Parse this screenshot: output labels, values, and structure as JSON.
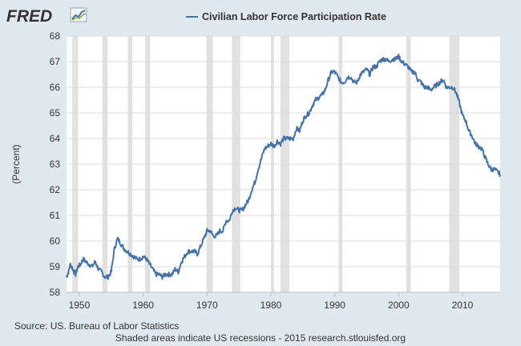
{
  "brand": {
    "name": "FRED"
  },
  "source": "Source: US. Bureau of Labor Statistics",
  "footer": "Shaded areas indicate US recessions - 2015 research.stlouisfed.org",
  "colors": {
    "background": "#e1e9f0",
    "plot_background": "#ffffff",
    "series": "#4572a7",
    "recession": "#e1e1e1",
    "grid": "#dddddd"
  },
  "chart_data": {
    "type": "line",
    "title": "",
    "xlabel": "",
    "ylabel": "(Percent)",
    "xlim": [
      1948,
      2015.9
    ],
    "ylim": [
      58,
      68
    ],
    "xticks": [
      1950,
      1960,
      1970,
      1980,
      1990,
      2000,
      2010
    ],
    "yticks": [
      58,
      59,
      60,
      61,
      62,
      63,
      64,
      65,
      66,
      67,
      68
    ],
    "grid": "horizontal",
    "legend": "top-center",
    "recessions": [
      [
        1948.9,
        1949.8
      ],
      [
        1953.6,
        1954.4
      ],
      [
        1957.6,
        1958.3
      ],
      [
        1960.3,
        1961.1
      ],
      [
        1969.9,
        1970.9
      ],
      [
        1973.9,
        1975.2
      ],
      [
        1980.0,
        1980.5
      ],
      [
        1981.5,
        1982.9
      ],
      [
        1990.6,
        1991.2
      ],
      [
        2001.2,
        2001.9
      ],
      [
        2007.9,
        2009.5
      ]
    ],
    "series": [
      {
        "name": "Civilian Labor Force Participation Rate",
        "x": [
          1948.0,
          1948.3,
          1948.6,
          1949.0,
          1949.4,
          1949.8,
          1950.2,
          1950.6,
          1951.0,
          1951.5,
          1952.0,
          1952.5,
          1953.0,
          1953.5,
          1954.0,
          1954.5,
          1955.0,
          1955.5,
          1956.0,
          1956.5,
          1957.0,
          1957.5,
          1958.0,
          1958.5,
          1959.0,
          1959.5,
          1960.0,
          1960.5,
          1961.0,
          1961.5,
          1962.0,
          1962.5,
          1963.0,
          1963.5,
          1964.0,
          1964.5,
          1965.0,
          1965.5,
          1966.0,
          1966.5,
          1967.0,
          1967.5,
          1968.0,
          1968.5,
          1969.0,
          1969.5,
          1970.0,
          1970.5,
          1971.0,
          1971.5,
          1972.0,
          1972.5,
          1973.0,
          1973.5,
          1974.0,
          1974.5,
          1975.0,
          1975.5,
          1976.0,
          1976.5,
          1977.0,
          1977.5,
          1978.0,
          1978.5,
          1979.0,
          1979.5,
          1980.0,
          1980.5,
          1981.0,
          1981.5,
          1982.0,
          1982.5,
          1983.0,
          1983.5,
          1984.0,
          1984.5,
          1985.0,
          1985.5,
          1986.0,
          1986.5,
          1987.0,
          1987.5,
          1988.0,
          1988.5,
          1989.0,
          1989.5,
          1990.0,
          1990.5,
          1991.0,
          1991.5,
          1992.0,
          1992.5,
          1993.0,
          1993.5,
          1994.0,
          1994.5,
          1995.0,
          1995.5,
          1996.0,
          1996.5,
          1997.0,
          1997.5,
          1998.0,
          1998.5,
          1999.0,
          1999.5,
          2000.0,
          2000.5,
          2001.0,
          2001.5,
          2002.0,
          2002.5,
          2003.0,
          2003.5,
          2004.0,
          2004.5,
          2005.0,
          2005.5,
          2006.0,
          2006.5,
          2007.0,
          2007.5,
          2008.0,
          2008.5,
          2009.0,
          2009.5,
          2010.0,
          2010.5,
          2011.0,
          2011.5,
          2012.0,
          2012.5,
          2013.0,
          2013.5,
          2014.0,
          2014.5,
          2015.0,
          2015.5,
          2015.9
        ],
        "y": [
          58.6,
          58.8,
          59.1,
          58.9,
          58.7,
          59.0,
          59.1,
          59.3,
          59.2,
          59.1,
          59.0,
          59.2,
          58.9,
          58.8,
          58.6,
          58.6,
          58.8,
          59.7,
          60.1,
          59.9,
          59.7,
          59.6,
          59.5,
          59.4,
          59.3,
          59.3,
          59.4,
          59.3,
          59.1,
          58.9,
          58.7,
          58.7,
          58.6,
          58.7,
          58.7,
          58.7,
          58.9,
          58.8,
          59.2,
          59.4,
          59.6,
          59.6,
          59.6,
          59.5,
          59.8,
          60.1,
          60.4,
          60.4,
          60.2,
          60.2,
          60.4,
          60.4,
          60.8,
          60.8,
          61.2,
          61.3,
          61.2,
          61.2,
          61.4,
          61.6,
          62.0,
          62.3,
          62.8,
          63.2,
          63.6,
          63.7,
          63.8,
          63.7,
          63.9,
          63.8,
          64.0,
          64.0,
          64.0,
          64.0,
          64.4,
          64.3,
          64.7,
          64.9,
          65.0,
          65.3,
          65.5,
          65.6,
          65.7,
          65.9,
          66.3,
          66.6,
          66.6,
          66.4,
          66.2,
          66.2,
          66.4,
          66.4,
          66.2,
          66.2,
          66.5,
          66.6,
          66.7,
          66.5,
          66.8,
          66.8,
          67.0,
          67.1,
          67.1,
          67.0,
          67.1,
          67.1,
          67.2,
          67.0,
          66.9,
          66.8,
          66.6,
          66.6,
          66.3,
          66.2,
          66.0,
          66.0,
          65.9,
          66.0,
          66.1,
          66.2,
          66.3,
          66.0,
          66.0,
          66.0,
          65.8,
          65.4,
          64.9,
          64.7,
          64.3,
          64.1,
          63.8,
          63.7,
          63.6,
          63.3,
          63.0,
          62.8,
          62.8,
          62.7,
          62.6
        ]
      }
    ]
  }
}
